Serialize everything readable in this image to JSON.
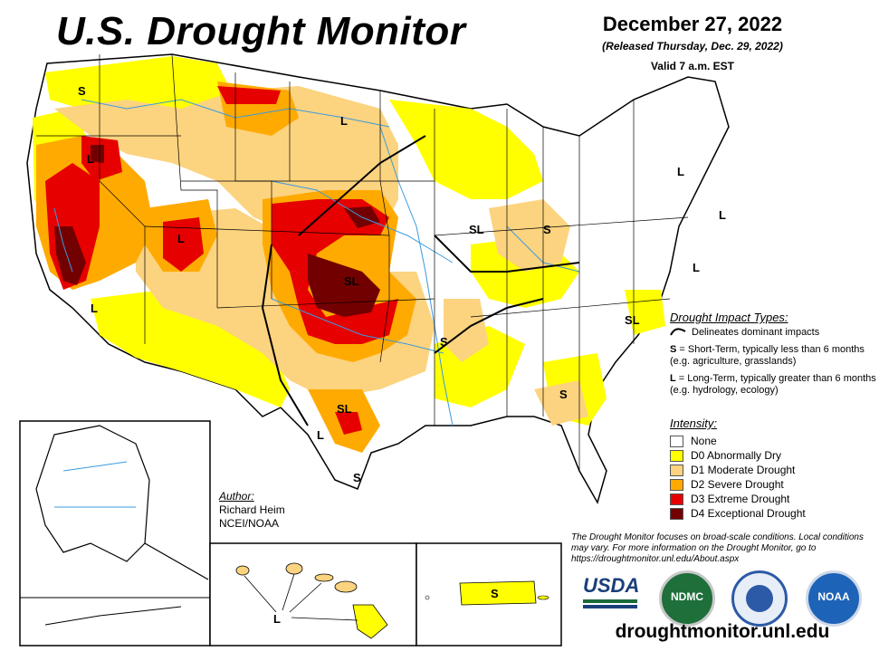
{
  "header": {
    "title": "U.S. Drought Monitor",
    "date": "December 27, 2022",
    "released": "(Released Thursday, Dec. 29, 2022)",
    "valid": "Valid 7 a.m. EST"
  },
  "impact_types": {
    "heading": "Drought Impact Types:",
    "delineates": "Delineates dominant impacts",
    "short_term_key": "S",
    "short_term_text": "= Short-Term, typically less than 6 months (e.g. agriculture, grasslands)",
    "long_term_key": "L",
    "long_term_text": "= Long-Term, typically greater than 6 months (e.g. hydrology, ecology)"
  },
  "intensity": {
    "heading": "Intensity:",
    "items": [
      {
        "label": "None",
        "color": "#ffffff"
      },
      {
        "label": "D0 Abnormally Dry",
        "color": "#ffff00"
      },
      {
        "label": "D1 Moderate Drought",
        "color": "#fcd37f"
      },
      {
        "label": "D2 Severe Drought",
        "color": "#ffaa00"
      },
      {
        "label": "D3 Extreme Drought",
        "color": "#e60000"
      },
      {
        "label": "D4 Exceptional Drought",
        "color": "#730000"
      }
    ]
  },
  "author": {
    "heading": "Author:",
    "name": "Richard Heim",
    "org": "NCEI/NOAA"
  },
  "note": "The Drought Monitor focuses on broad-scale conditions. Local conditions may vary. For more information on the Drought Monitor, go to https://droughtmonitor.unl.edu/About.aspx",
  "logos": {
    "usda": "USDA",
    "ndmc": "NDMC",
    "noaa": "NOAA"
  },
  "url": "droughtmonitor.unl.edu",
  "map_labels": {
    "s": "S",
    "l": "L",
    "sl": "SL"
  },
  "colors": {
    "water": "#3a9ae0",
    "state_border": "#000000"
  }
}
